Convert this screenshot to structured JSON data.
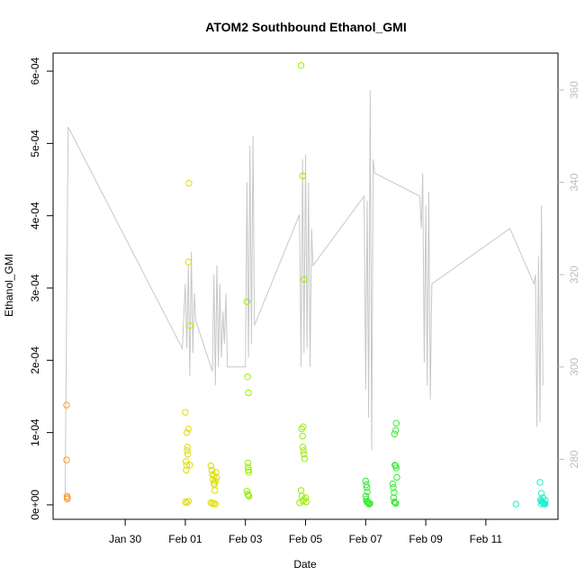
{
  "chart_data": {
    "type": "scatter",
    "title": "ATOM2 Southbound Ethanol_GMI",
    "xlabel": "Date",
    "ylabel": "Ethanol_GMI",
    "xlim_days": [
      -2.4,
      12.4
    ],
    "x_ticks": [
      {
        "day": 2,
        "label": "Jan 30"
      },
      {
        "day": 4,
        "label": "Feb 01"
      },
      {
        "day": 6,
        "label": "Feb 03"
      },
      {
        "day": 8,
        "label": "Feb 05"
      },
      {
        "day": 10,
        "label": "Feb 07"
      },
      {
        "day": 12,
        "label": "Feb 09"
      },
      {
        "day": 14,
        "label": "Feb 11"
      }
    ],
    "ylim": [
      -2e-05,
      0.000625
    ],
    "y_ticks": [
      {
        "value": 0,
        "label": "0e+00"
      },
      {
        "value": 0.0001,
        "label": "1e-04"
      },
      {
        "value": 0.0002,
        "label": "2e-04"
      },
      {
        "value": 0.0003,
        "label": "3e-04"
      },
      {
        "value": 0.0004,
        "label": "4e-04"
      },
      {
        "value": 0.0005,
        "label": "5e-04"
      },
      {
        "value": 0.0006,
        "label": "6e-04"
      }
    ],
    "y2lim": [
      267,
      368
    ],
    "y2_ticks": [
      {
        "value": 280,
        "label": "280"
      },
      {
        "value": 300,
        "label": "300"
      },
      {
        "value": 320,
        "label": "320"
      },
      {
        "value": 340,
        "label": "340"
      },
      {
        "value": 360,
        "label": "360"
      }
    ],
    "series": [
      {
        "color": "#ff9933",
        "points": [
          [
            28.05,
            0.000138
          ],
          [
            28.05,
            6.2e-05
          ],
          [
            28.06,
            1.2e-05
          ],
          [
            28.07,
            8e-06
          ],
          [
            28.08,
            1e-05
          ]
        ]
      },
      {
        "color": "#dddd00",
        "points": [
          [
            32.0,
            0.000128
          ],
          [
            32.02,
            6e-05
          ],
          [
            32.03,
            4.8e-05
          ],
          [
            32.04,
            5.5e-05
          ],
          [
            32.06,
            7.5e-05
          ],
          [
            32.07,
            8e-05
          ],
          [
            32.08,
            7e-05
          ],
          [
            32.1,
            0.000105
          ],
          [
            32.05,
            0.0001
          ],
          [
            32.1,
            0.000336
          ],
          [
            32.12,
            0.000445
          ],
          [
            32.15,
            0.000248
          ],
          [
            32.15,
            5.5e-05
          ],
          [
            32.0,
            4e-06
          ],
          [
            32.05,
            3e-06
          ],
          [
            32.1,
            5e-06
          ],
          [
            32.85,
            5.4e-05
          ],
          [
            32.88,
            4.8e-05
          ],
          [
            32.9,
            4.2e-05
          ],
          [
            32.92,
            3.5e-05
          ],
          [
            32.95,
            3e-05
          ],
          [
            32.96,
            4e-05
          ],
          [
            32.97,
            2.8e-05
          ],
          [
            32.98,
            2e-05
          ],
          [
            33.0,
            3.3e-05
          ],
          [
            33.02,
            4.5e-05
          ],
          [
            33.04,
            3.8e-05
          ],
          [
            32.85,
            3e-06
          ],
          [
            32.9,
            2e-06
          ],
          [
            32.95,
            2e-06
          ],
          [
            33.0,
            1e-06
          ]
        ]
      },
      {
        "color": "#99ee00",
        "points": [
          [
            34.05,
            0.000281
          ],
          [
            34.07,
            0.000177
          ],
          [
            34.1,
            0.000155
          ],
          [
            34.08,
            5.8e-05
          ],
          [
            34.09,
            5.2e-05
          ],
          [
            34.1,
            4.8e-05
          ],
          [
            34.11,
            4.5e-05
          ],
          [
            34.05,
            1.9e-05
          ],
          [
            34.08,
            1.5e-05
          ],
          [
            34.1,
            1.3e-05
          ],
          [
            34.12,
            1.2e-05
          ],
          [
            35.85,
            0.000608
          ],
          [
            35.9,
            0.000455
          ],
          [
            35.95,
            0.000312
          ],
          [
            35.87,
            0.000105
          ],
          [
            35.92,
            0.000108
          ],
          [
            35.9,
            9.5e-05
          ],
          [
            35.91,
            8e-05
          ],
          [
            35.95,
            7e-05
          ],
          [
            35.97,
            6.4e-05
          ],
          [
            35.93,
            7.5e-05
          ],
          [
            35.85,
            2e-05
          ],
          [
            35.88,
            1.2e-05
          ],
          [
            35.9,
            5e-06
          ],
          [
            35.95,
            7e-06
          ],
          [
            36.0,
            1e-05
          ],
          [
            36.02,
            4e-06
          ],
          [
            35.8,
            3e-06
          ]
        ]
      },
      {
        "color": "#33ee33",
        "points": [
          [
            38.0,
            3.3e-05
          ],
          [
            38.02,
            2.8e-05
          ],
          [
            38.04,
            2.4e-05
          ],
          [
            38.05,
            1.8e-05
          ],
          [
            38.0,
            1.2e-05
          ],
          [
            38.02,
            8e-06
          ],
          [
            38.03,
            5e-06
          ],
          [
            38.05,
            4e-06
          ],
          [
            38.07,
            3e-06
          ],
          [
            38.1,
            2e-06
          ],
          [
            38.12,
            1e-06
          ],
          [
            38.14,
            2e-06
          ],
          [
            38.9,
            2.9e-05
          ],
          [
            38.92,
            2.4e-05
          ],
          [
            38.95,
            1.7e-05
          ],
          [
            38.93,
            1e-05
          ],
          [
            38.95,
            4e-06
          ],
          [
            38.98,
            3e-06
          ],
          [
            39.0,
            5.4e-05
          ],
          [
            39.02,
            5.1e-05
          ],
          [
            38.97,
            5.5e-05
          ],
          [
            38.96,
            9.8e-05
          ],
          [
            39.0,
            0.000103
          ],
          [
            39.02,
            0.000113
          ],
          [
            39.04,
            3.8e-05
          ],
          [
            39.0,
            2e-06
          ]
        ]
      },
      {
        "color": "#22eecc",
        "points": [
          [
            43.0,
            1e-06
          ],
          [
            43.8,
            3.1e-05
          ],
          [
            43.85,
            1.6e-05
          ],
          [
            43.9,
            1e-05
          ],
          [
            43.82,
            7e-06
          ],
          [
            43.85,
            5e-06
          ],
          [
            43.88,
            4e-06
          ],
          [
            43.9,
            3e-06
          ],
          [
            43.92,
            2e-06
          ],
          [
            43.95,
            2e-06
          ],
          [
            43.97,
            1e-06
          ],
          [
            43.85,
            1e-06
          ],
          [
            43.98,
            6e-06
          ]
        ]
      }
    ],
    "secondary_line": {
      "color": "#c8c8c8",
      "points": [
        [
          28.0,
          272
        ],
        [
          28.1,
          352
        ],
        [
          31.9,
          304
        ],
        [
          32.0,
          318
        ],
        [
          32.05,
          304
        ],
        [
          32.1,
          322
        ],
        [
          32.15,
          298
        ],
        [
          32.2,
          325
        ],
        [
          32.25,
          303
        ],
        [
          32.3,
          316
        ],
        [
          32.35,
          310
        ],
        [
          32.9,
          299
        ],
        [
          32.95,
          320
        ],
        [
          33.0,
          296
        ],
        [
          33.05,
          322
        ],
        [
          33.1,
          300
        ],
        [
          33.15,
          318
        ],
        [
          33.2,
          302
        ],
        [
          33.25,
          312
        ],
        [
          33.3,
          305
        ],
        [
          33.35,
          316
        ],
        [
          33.4,
          300
        ],
        [
          34.0,
          300
        ],
        [
          34.05,
          340
        ],
        [
          34.1,
          302
        ],
        [
          34.15,
          348
        ],
        [
          34.2,
          305
        ],
        [
          34.25,
          350
        ],
        [
          34.3,
          309
        ],
        [
          35.8,
          333
        ],
        [
          35.85,
          300
        ],
        [
          35.9,
          345
        ],
        [
          35.95,
          303
        ],
        [
          36.0,
          346
        ],
        [
          36.05,
          304
        ],
        [
          36.1,
          340
        ],
        [
          36.15,
          300
        ],
        [
          36.2,
          330
        ],
        [
          36.25,
          322
        ],
        [
          37.95,
          337
        ],
        [
          38.0,
          295
        ],
        [
          38.05,
          336
        ],
        [
          38.1,
          289
        ],
        [
          38.15,
          360
        ],
        [
          38.2,
          282
        ],
        [
          38.25,
          345
        ],
        [
          38.3,
          342
        ],
        [
          39.8,
          337
        ],
        [
          39.85,
          330
        ],
        [
          39.9,
          342
        ],
        [
          39.95,
          301
        ],
        [
          40.0,
          335
        ],
        [
          40.05,
          296
        ],
        [
          40.1,
          338
        ],
        [
          40.15,
          293
        ],
        [
          40.2,
          318
        ],
        [
          42.8,
          330
        ],
        [
          43.6,
          318
        ],
        [
          43.65,
          320
        ],
        [
          43.7,
          287
        ],
        [
          43.75,
          324
        ],
        [
          43.8,
          288
        ],
        [
          43.85,
          335
        ],
        [
          43.9,
          296
        ]
      ]
    }
  }
}
